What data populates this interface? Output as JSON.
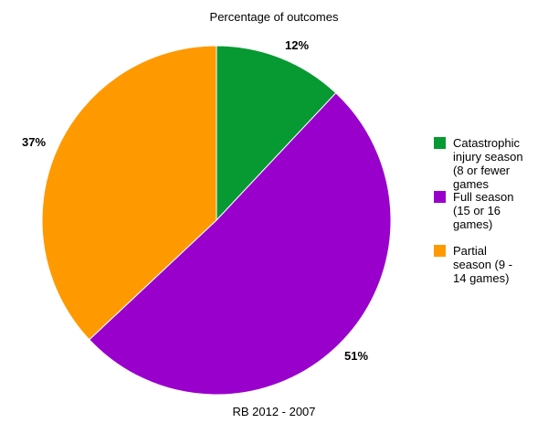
{
  "chart_data": {
    "type": "pie",
    "title": "Percentage of outcomes",
    "xlabel": "RB 2012 - 2007",
    "slices": [
      {
        "label": "Catastrophic injury season (8 or fewer games",
        "value": 12,
        "value_label": "12%",
        "color": "#079a32"
      },
      {
        "label": "Full season (15 or 16 games)",
        "value": 51,
        "value_label": "51%",
        "color": "#9900cc"
      },
      {
        "label": "Partial season (9 - 14 games)",
        "value": 37,
        "value_label": "37%",
        "color": "#ff9900"
      }
    ],
    "start_angle_deg": 0,
    "direction": "clockwise",
    "legend_position": "right",
    "legend_lines": [
      [
        "Catastrophic",
        "injury season",
        "(8 or fewer",
        "games"
      ],
      [
        "Full season",
        "(15 or 16",
        "games)"
      ],
      [
        "Partial",
        "season (9 -",
        "14 games)"
      ]
    ]
  }
}
